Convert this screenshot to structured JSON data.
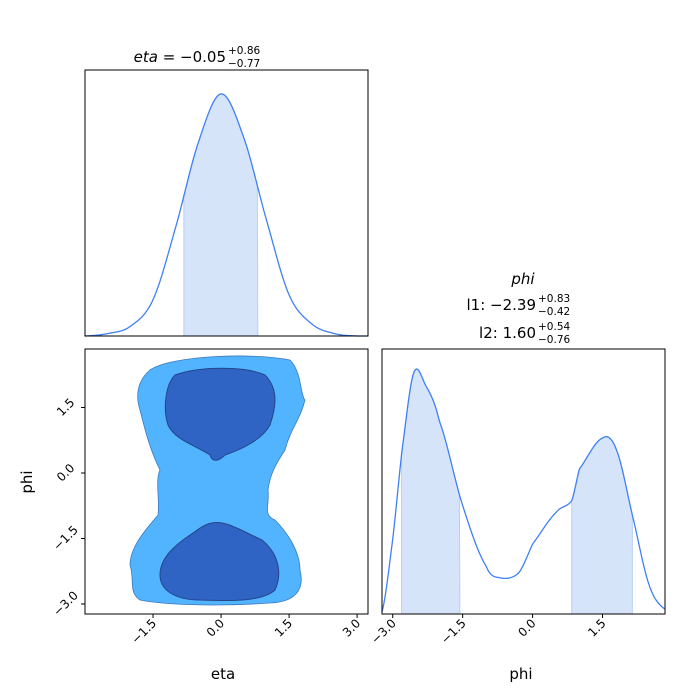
{
  "chart_data": [
    {
      "type": "line",
      "panel": "eta-marginal",
      "title": {
        "name": "eta",
        "value": "−0.05",
        "plus": "+0.86",
        "minus": "−0.77"
      },
      "xlim": [
        -3.0,
        3.24
      ],
      "x": [
        -3.0,
        -2.5,
        -2.0,
        -1.5,
        -1.0,
        -0.5,
        0.0,
        0.5,
        1.0,
        1.5,
        2.0,
        2.5,
        3.0,
        3.24
      ],
      "density": [
        0.0,
        0.01,
        0.04,
        0.15,
        0.45,
        0.8,
        1.0,
        0.82,
        0.48,
        0.17,
        0.05,
        0.01,
        0.0,
        0.0
      ],
      "shaded_interval": [
        -0.82,
        0.81
      ],
      "color": "#3f80f4",
      "fill_color": "#d6e4fa"
    },
    {
      "type": "area",
      "panel": "eta-phi-contour",
      "xlabel": "eta",
      "ylabel": "phi",
      "xlim": [
        -3.0,
        3.24
      ],
      "ylim": [
        -3.23,
        2.84
      ],
      "xticks": [
        "−1.5",
        "0.0",
        "1.5",
        "3.0"
      ],
      "xtick_values": [
        -1.5,
        0.0,
        1.5,
        3.0
      ],
      "yticks": [
        "1.5",
        "0.0",
        "−1.5",
        "−3.0"
      ],
      "ytick_values": [
        1.5,
        0.0,
        -1.5,
        -3.0
      ],
      "outer_color": "#52b4fe",
      "inner_color": "#2f63c4"
    },
    {
      "type": "line",
      "panel": "phi-marginal",
      "title": {
        "name": "phi",
        "l1_label": "l1: ",
        "l1_value": "−2.39",
        "l1_plus": "+0.83",
        "l1_minus": "−0.42",
        "l2_label": "l2: ",
        "l2_value": "1.60",
        "l2_plus": "+0.54",
        "l2_minus": "−0.76"
      },
      "xlabel": "phi",
      "xlim": [
        -3.23,
        2.84
      ],
      "xticks": [
        "−3.0",
        "−1.5",
        "0.0",
        "1.5"
      ],
      "xtick_values": [
        -3.0,
        -1.5,
        0.0,
        1.5
      ],
      "x": [
        -3.23,
        -3.0,
        -2.8,
        -2.55,
        -2.3,
        -2.0,
        -1.5,
        -1.0,
        -0.7,
        -0.3,
        0.0,
        0.5,
        0.84,
        1.0,
        1.5,
        1.8,
        2.14,
        2.5,
        2.84
      ],
      "density": [
        0.01,
        0.31,
        0.68,
        1.0,
        0.95,
        0.8,
        0.45,
        0.2,
        0.15,
        0.17,
        0.29,
        0.42,
        0.47,
        0.6,
        0.73,
        0.68,
        0.41,
        0.12,
        0.02
      ],
      "shaded_intervals": [
        [
          -2.81,
          -1.56
        ],
        [
          0.84,
          2.14
        ]
      ],
      "color": "#3f80f4",
      "fill_color": "#d6e4fa"
    }
  ]
}
